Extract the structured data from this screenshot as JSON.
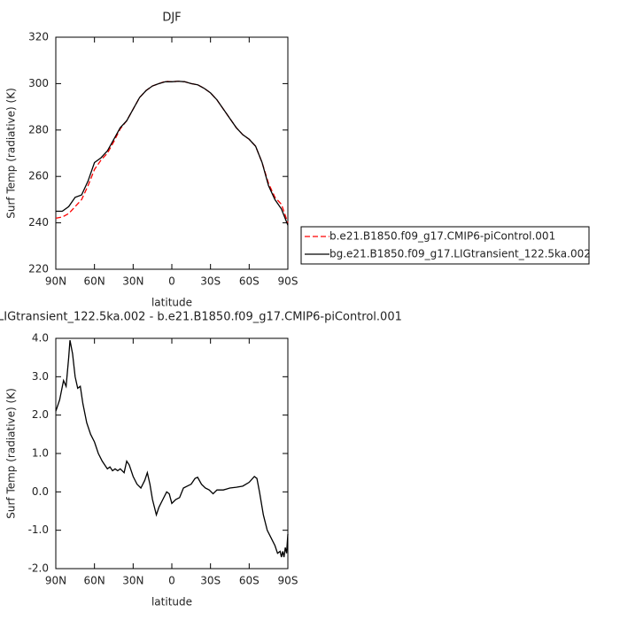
{
  "chart_data": [
    {
      "type": "line",
      "title": "DJF",
      "xlabel": "latitude",
      "ylabel": "Surf Temp (radiative) (K)",
      "xlim": [
        90,
        -90
      ],
      "xticks": [
        {
          "value": 90,
          "label": "90N"
        },
        {
          "value": 60,
          "label": "60N"
        },
        {
          "value": 30,
          "label": "30N"
        },
        0,
        {
          "value": -30,
          "label": "30S"
        },
        {
          "value": -60,
          "label": "60S"
        },
        {
          "value": -90,
          "label": "90S"
        }
      ],
      "ylim": [
        220,
        320
      ],
      "yticks": [
        220,
        240,
        260,
        280,
        300,
        320
      ],
      "legend": "outside-right",
      "x": [
        90,
        85,
        80,
        75,
        70,
        65,
        60,
        55,
        50,
        45,
        40,
        35,
        30,
        25,
        20,
        15,
        10,
        5,
        0,
        -5,
        -10,
        -15,
        -20,
        -25,
        -30,
        -35,
        -40,
        -45,
        -50,
        -55,
        -60,
        -65,
        -70,
        -75,
        -80,
        -85,
        -90
      ],
      "series": [
        {
          "name": "b.e21.B1850.f09_g17.CMIP6-piControl.001",
          "color": "#ff0000",
          "dash": true,
          "values": [
            242,
            242.5,
            244,
            247,
            250,
            256,
            263,
            267,
            270,
            275,
            280.5,
            284,
            289,
            294,
            297,
            299,
            300,
            301,
            300.8,
            301,
            300.8,
            300,
            299.5,
            298,
            296,
            293,
            289,
            285,
            281,
            278,
            276,
            273,
            266,
            257,
            251,
            248,
            240
          ]
        },
        {
          "name": "bg.e21.B1850.f09_g17.LIGtransient_122.5ka.002",
          "color": "#000000",
          "dash": false,
          "values": [
            245,
            245,
            247,
            251,
            252,
            258,
            266,
            268,
            271,
            276,
            281,
            284,
            289,
            294,
            297,
            299,
            300,
            300.8,
            300.8,
            301,
            300.8,
            300,
            299.5,
            298,
            296,
            293,
            289,
            285,
            281,
            278,
            276,
            273,
            266,
            256,
            250,
            246,
            239
          ]
        }
      ]
    },
    {
      "type": "line",
      "title": "LIGtransient_122.5ka.002 - b.e21.B1850.f09_g17.CMIP6-piControl.001",
      "xlabel": "latitude",
      "ylabel": "Surf Temp (radiative) (K)",
      "xlim": [
        90,
        -90
      ],
      "xticks": [
        {
          "value": 90,
          "label": "90N"
        },
        {
          "value": 60,
          "label": "60N"
        },
        {
          "value": 30,
          "label": "30N"
        },
        0,
        {
          "value": -30,
          "label": "30S"
        },
        {
          "value": -60,
          "label": "60S"
        },
        {
          "value": -90,
          "label": "90S"
        }
      ],
      "ylim": [
        -2,
        4
      ],
      "yticks": [
        {
          "value": -2,
          "label": "-2.0"
        },
        {
          "value": -1,
          "label": "-1.0"
        },
        {
          "value": 0,
          "label": "0.0"
        },
        {
          "value": 1,
          "label": "1.0"
        },
        {
          "value": 2,
          "label": "2.0"
        },
        {
          "value": 3,
          "label": "3.0"
        },
        {
          "value": 4,
          "label": "4.0"
        }
      ],
      "x": [
        90,
        87,
        84,
        82,
        80,
        79,
        77,
        75,
        73,
        71,
        69,
        66,
        63,
        60,
        57,
        54,
        52,
        50,
        48,
        46,
        44,
        42,
        40,
        37,
        35,
        33,
        30,
        27,
        24,
        21,
        19,
        17,
        15,
        12,
        10,
        7,
        4,
        2,
        0,
        -3,
        -6,
        -9,
        -12,
        -15,
        -18,
        -20,
        -23,
        -26,
        -29,
        -32,
        -35,
        -40,
        -45,
        -50,
        -55,
        -60,
        -64,
        -66,
        -68,
        -71,
        -74,
        -77,
        -80,
        -82,
        -84,
        -85,
        -86,
        -87,
        -88,
        -89,
        -90
      ],
      "series": [
        {
          "color": "#000000",
          "dash": false,
          "values": [
            2.1,
            2.4,
            2.9,
            2.75,
            3.5,
            3.95,
            3.6,
            3.0,
            2.7,
            2.75,
            2.3,
            1.8,
            1.5,
            1.3,
            1.0,
            0.8,
            0.7,
            0.6,
            0.65,
            0.55,
            0.6,
            0.55,
            0.6,
            0.5,
            0.8,
            0.7,
            0.4,
            0.2,
            0.1,
            0.3,
            0.5,
            0.2,
            -0.2,
            -0.6,
            -0.4,
            -0.2,
            0.0,
            -0.05,
            -0.3,
            -0.2,
            -0.15,
            0.1,
            0.15,
            0.2,
            0.35,
            0.38,
            0.2,
            0.1,
            0.05,
            -0.05,
            0.05,
            0.05,
            0.1,
            0.12,
            0.15,
            0.25,
            0.4,
            0.35,
            0.0,
            -0.6,
            -1.0,
            -1.2,
            -1.4,
            -1.6,
            -1.55,
            -1.7,
            -1.55,
            -1.7,
            -1.45,
            -1.6,
            -1.1
          ]
        }
      ]
    }
  ]
}
